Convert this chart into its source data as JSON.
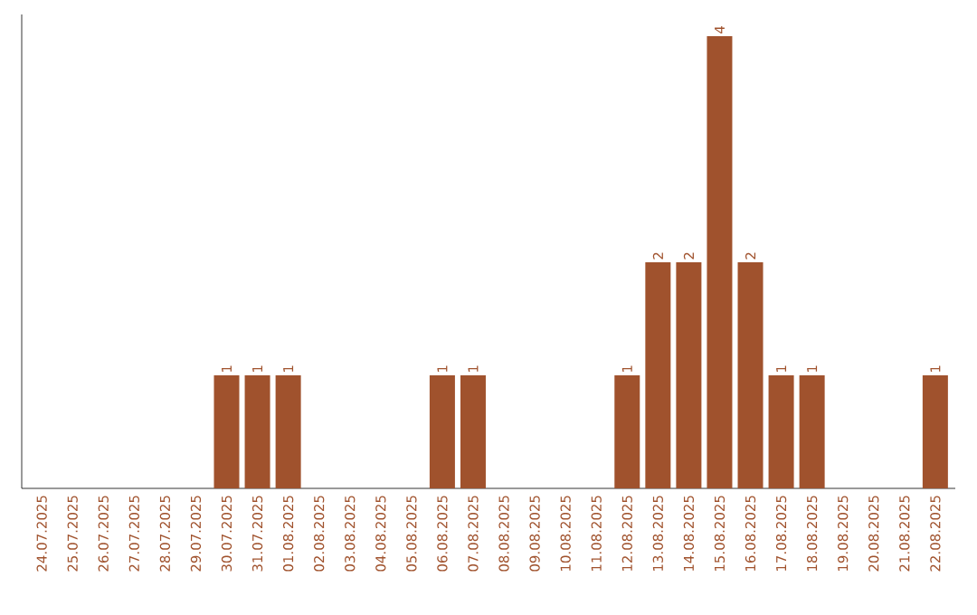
{
  "chart_data": {
    "type": "bar",
    "categories": [
      "24.07.2025",
      "25.07.2025",
      "26.07.2025",
      "27.07.2025",
      "28.07.2025",
      "29.07.2025",
      "30.07.2025",
      "31.07.2025",
      "01.08.2025",
      "02.08.2025",
      "03.08.2025",
      "04.08.2025",
      "05.08.2025",
      "06.08.2025",
      "07.08.2025",
      "08.08.2025",
      "09.08.2025",
      "10.08.2025",
      "11.08.2025",
      "12.08.2025",
      "13.08.2025",
      "14.08.2025",
      "15.08.2025",
      "16.08.2025",
      "17.08.2025",
      "18.08.2025",
      "19.08.2025",
      "20.08.2025",
      "21.08.2025",
      "22.08.2025"
    ],
    "values": [
      0,
      0,
      0,
      0,
      0,
      0,
      1,
      1,
      1,
      0,
      0,
      0,
      0,
      1,
      1,
      0,
      0,
      0,
      0,
      1,
      2,
      2,
      4,
      2,
      1,
      1,
      0,
      0,
      0,
      1
    ],
    "value_labels": [
      null,
      null,
      null,
      null,
      null,
      null,
      "1",
      "1",
      "1",
      null,
      null,
      null,
      null,
      "1",
      "1",
      null,
      null,
      null,
      null,
      "1",
      "2",
      "2",
      "4",
      "2",
      "1",
      "1",
      null,
      null,
      null,
      "1"
    ],
    "color": "#a0522d"
  }
}
